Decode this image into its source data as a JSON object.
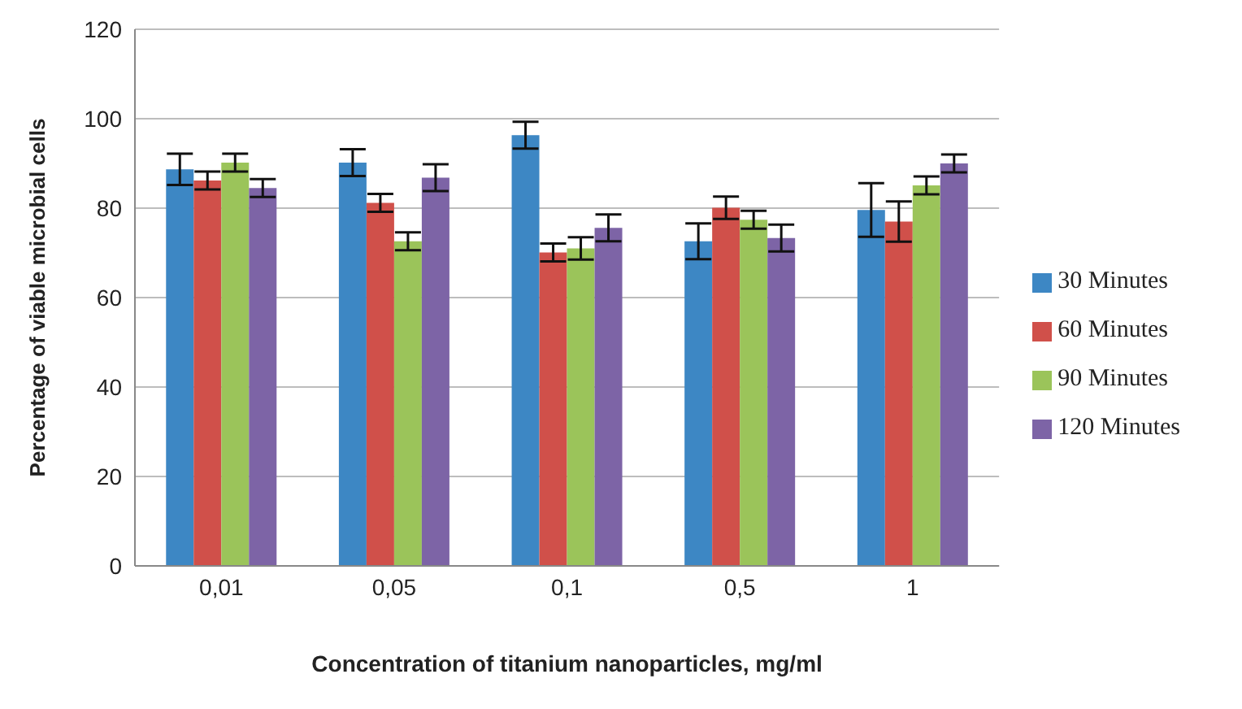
{
  "chart_data": {
    "type": "bar",
    "xlabel": "Concentration of titanium nanoparticles, mg/ml",
    "ylabel": "Percentage of viable microbial cells",
    "categories": [
      "0,01",
      "0,05",
      "0,1",
      "0,5",
      "1"
    ],
    "series": [
      {
        "name": "30 Minutes",
        "color": "#3d87c4",
        "values": [
          88.7,
          90.2,
          96.3,
          72.6,
          79.6
        ],
        "errors": [
          3.5,
          3,
          3,
          4,
          6
        ]
      },
      {
        "name": "60 Minutes",
        "color": "#d0504a",
        "values": [
          86.2,
          81.2,
          70.1,
          80.1,
          77
        ],
        "errors": [
          2,
          2,
          2,
          2.5,
          4.5
        ]
      },
      {
        "name": "90 Minutes",
        "color": "#9bc45a",
        "values": [
          90.2,
          72.6,
          71,
          77.4,
          85.1
        ],
        "errors": [
          2,
          2,
          2.5,
          2,
          2
        ]
      },
      {
        "name": "120 Minutes",
        "color": "#7d64a6",
        "values": [
          84.5,
          86.8,
          75.6,
          73.3,
          90
        ],
        "errors": [
          2,
          3,
          3,
          3,
          2
        ]
      }
    ],
    "ylim": [
      0,
      120
    ],
    "yticks": [
      0,
      20,
      40,
      60,
      80,
      100,
      120
    ],
    "grid": "y",
    "legend": "right"
  }
}
